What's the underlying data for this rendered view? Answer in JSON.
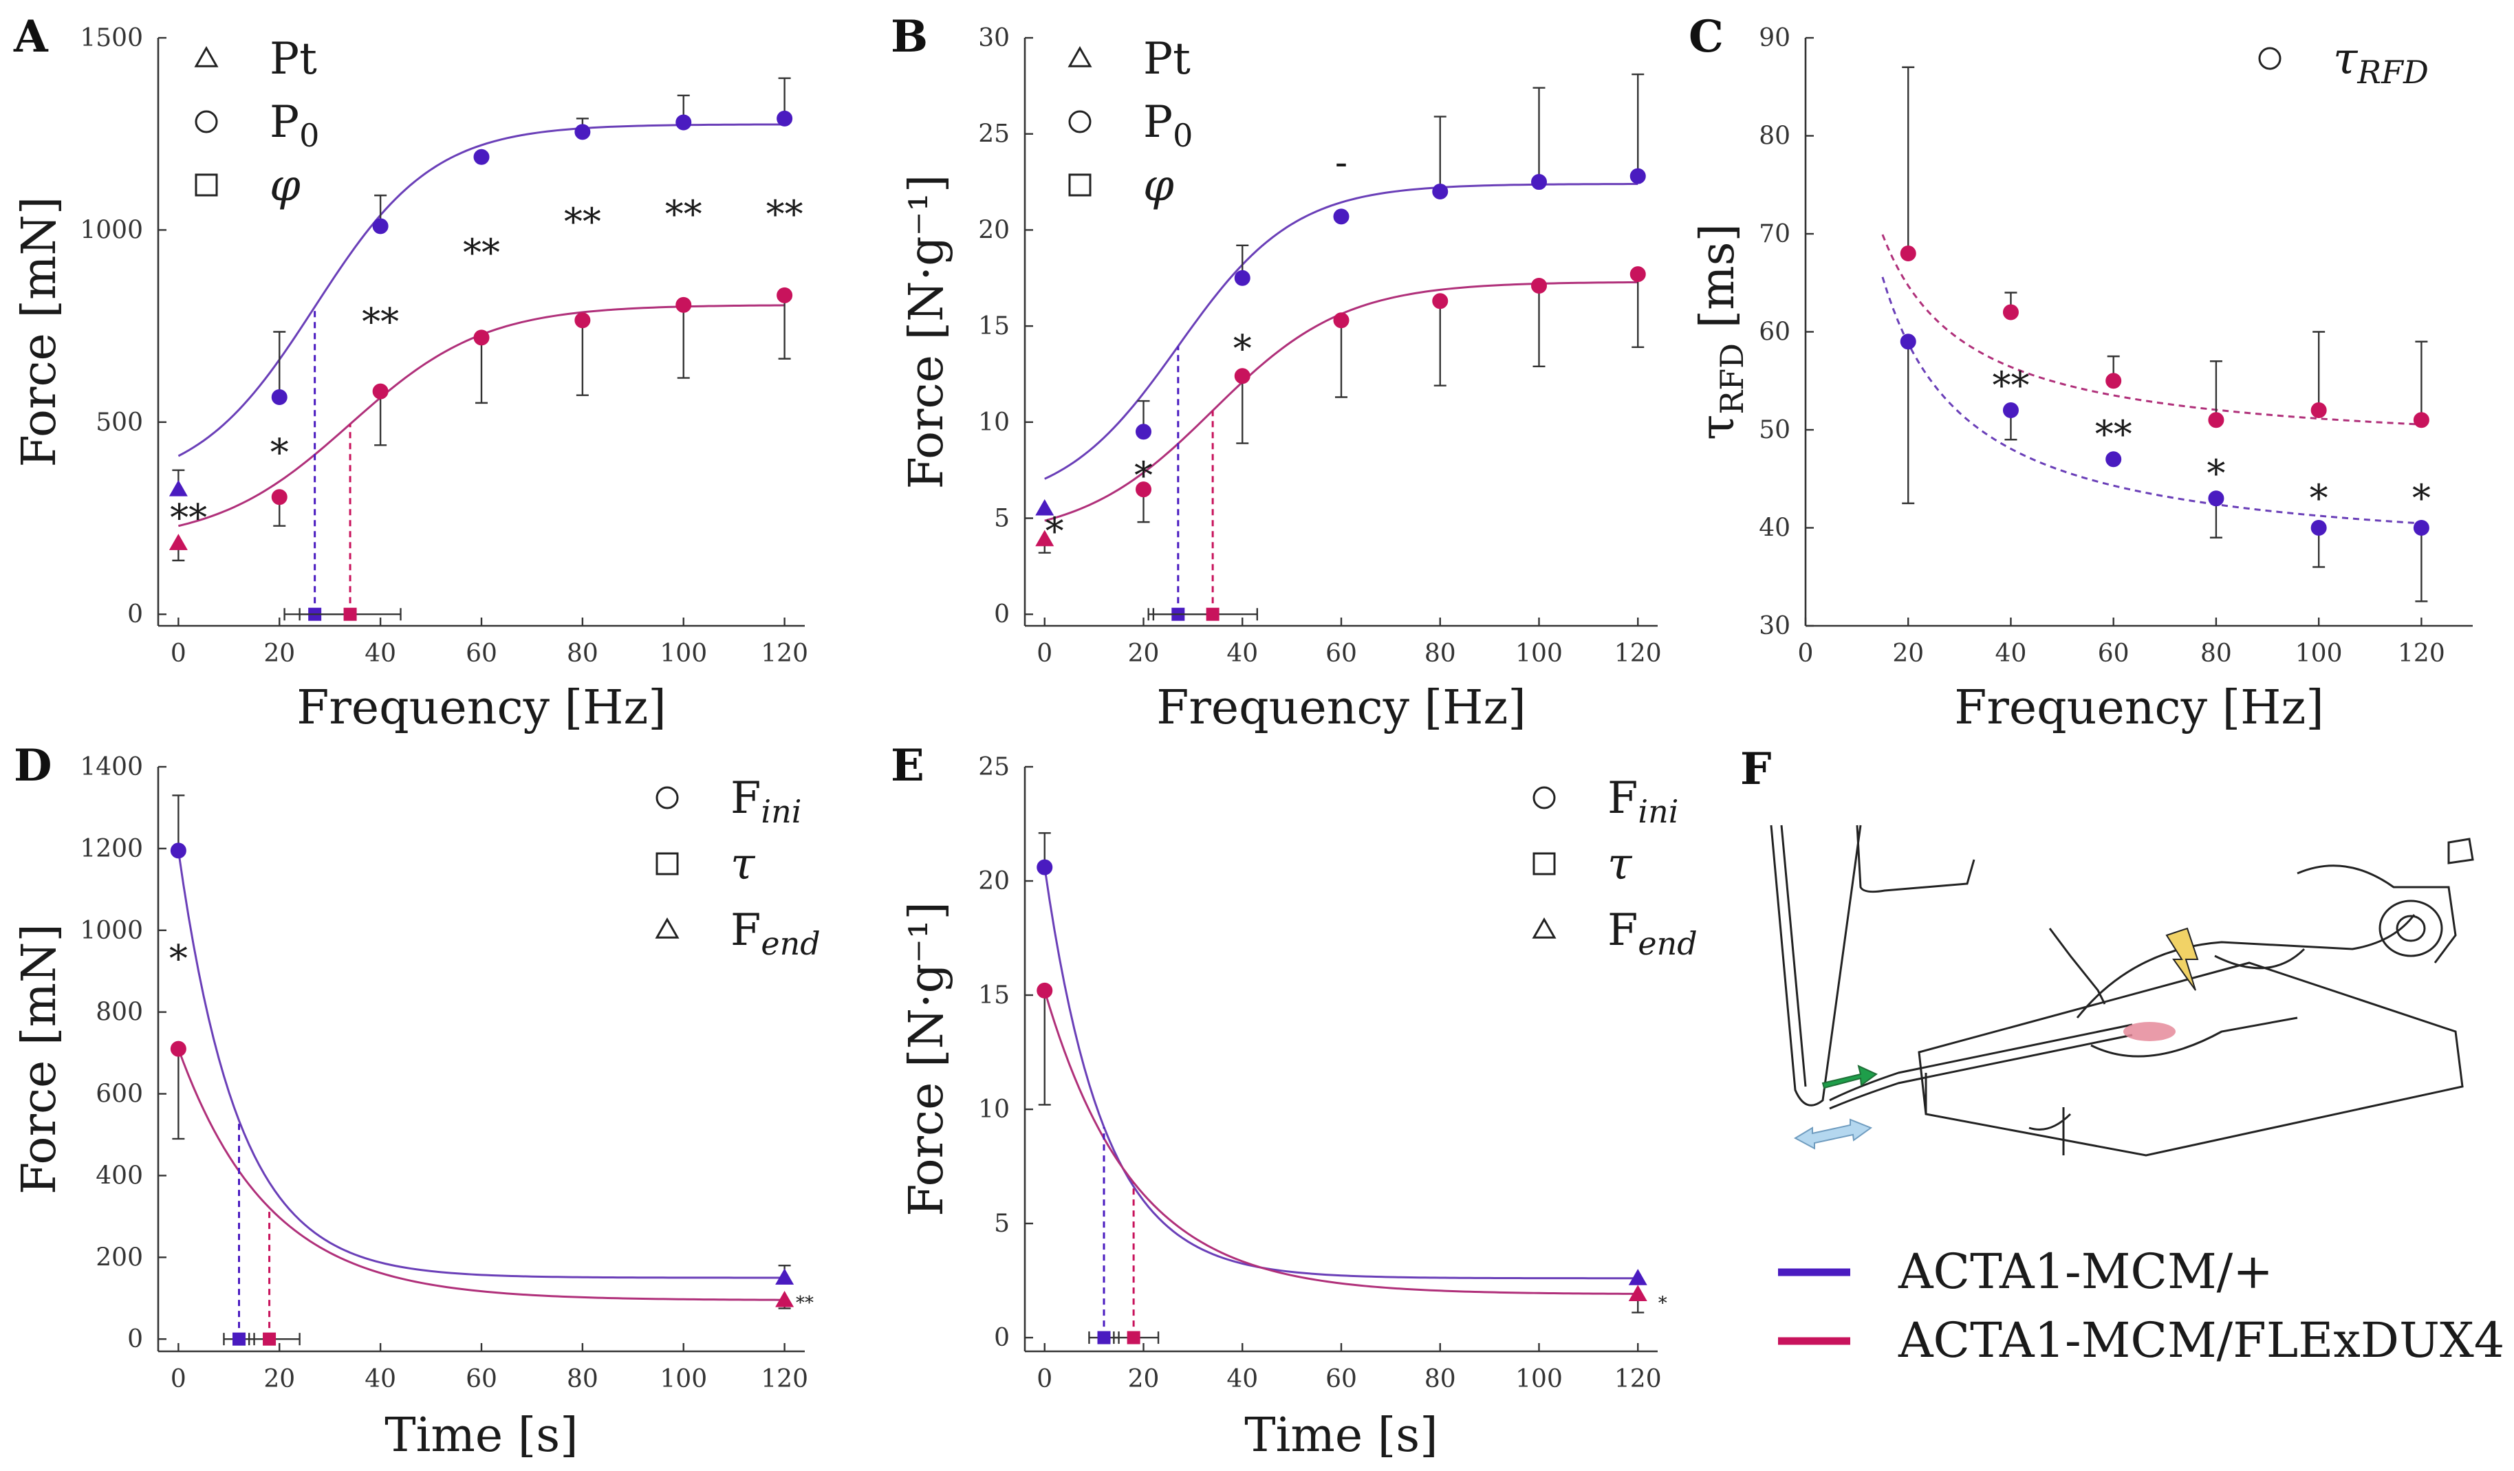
{
  "colors": {
    "wt": "#4a1bc0",
    "dux": "#c8135c",
    "wt_line": "#6a3fb8",
    "dux_line": "#b0307a"
  },
  "genotypes": {
    "wt": "ACTA1-MCM/+",
    "dux": "ACTA1-MCM/FLExDUX4"
  },
  "panels": [
    {
      "id": "A",
      "label": "A",
      "xlabel": "Frequency [Hz]",
      "ylabel": "Force [mN]",
      "xlim": [
        -4,
        124
      ],
      "ylim": [
        -30,
        1500
      ],
      "xticks": [
        "0",
        "20",
        "40",
        "60",
        "80",
        "100",
        "120"
      ],
      "xtick_vals": [
        0,
        20,
        40,
        60,
        80,
        100,
        120
      ],
      "yticks": [
        "0",
        "500",
        "1000",
        "1500"
      ],
      "ytick_vals": [
        0,
        500,
        1000,
        1500
      ],
      "legend": [
        {
          "marker": "triangle",
          "text": "Pt"
        },
        {
          "marker": "circle",
          "text": "P",
          "sub": "0"
        },
        {
          "marker": "square",
          "text": "φ",
          "italic": true
        }
      ],
      "chart_data": {
        "type": "scatter",
        "x": [
          0,
          20,
          40,
          60,
          80,
          100,
          120
        ],
        "series": [
          {
            "name": "ACTA1-MCM/+",
            "values": [
              325,
              565,
              1010,
              1190,
              1255,
              1280,
              1290
            ],
            "err": [
              50,
              170,
              80,
              0,
              35,
              70,
              105
            ],
            "err_dir": "up",
            "fit": {
              "a": 325,
              "b": 950,
              "c": 27,
              "k": 0.085
            }
          },
          {
            "name": "ACTA1-MCM/FLExDUX4",
            "values": [
              185,
              305,
              580,
              720,
              765,
              805,
              830
            ],
            "err": [
              45,
              75,
              140,
              170,
              195,
              190,
              165
            ],
            "err_dir": "down",
            "fit": {
              "a": 185,
              "b": 620,
              "c": 34,
              "k": 0.075
            }
          }
        ],
        "phi": [
          {
            "x": 27,
            "xerr": [
              21,
              33
            ]
          },
          {
            "x": 34,
            "xerr": [
              24,
              44
            ]
          }
        ],
        "sig": [
          {
            "x": 2,
            "y": 250,
            "t": "**"
          },
          {
            "x": 20,
            "y": 420,
            "t": "*"
          },
          {
            "x": 40,
            "y": 760,
            "t": "**"
          },
          {
            "x": 60,
            "y": 940,
            "t": "**"
          },
          {
            "x": 80,
            "y": 1020,
            "t": "**"
          },
          {
            "x": 100,
            "y": 1040,
            "t": "**"
          },
          {
            "x": 120,
            "y": 1040,
            "t": "**"
          }
        ]
      }
    },
    {
      "id": "B",
      "label": "B",
      "xlabel": "Frequency [Hz]",
      "ylabel": "Force [N·g⁻¹]",
      "xlim": [
        -4,
        124
      ],
      "ylim": [
        -0.6,
        30
      ],
      "xticks": [
        "0",
        "20",
        "40",
        "60",
        "80",
        "100",
        "120"
      ],
      "xtick_vals": [
        0,
        20,
        40,
        60,
        80,
        100,
        120
      ],
      "yticks": [
        "0",
        "5",
        "10",
        "15",
        "20",
        "25",
        "30"
      ],
      "ytick_vals": [
        0,
        5,
        10,
        15,
        20,
        25,
        30
      ],
      "legend": [
        {
          "marker": "triangle",
          "text": "Pt"
        },
        {
          "marker": "circle",
          "text": "P",
          "sub": "0"
        },
        {
          "marker": "square",
          "text": "φ",
          "italic": true
        }
      ],
      "chart_data": {
        "type": "scatter",
        "x": [
          0,
          20,
          40,
          60,
          80,
          100,
          120
        ],
        "series": [
          {
            "name": "ACTA1-MCM/+",
            "values": [
              5.5,
              9.5,
              17.5,
              20.7,
              22,
              22.5,
              22.8
            ],
            "err": [
              0,
              1.6,
              1.7,
              0,
              3.9,
              4.9,
              5.3
            ],
            "err_dir": "up",
            "fit": {
              "a": 5.5,
              "b": 16.9,
              "c": 27,
              "k": 0.085
            }
          },
          {
            "name": "ACTA1-MCM/FLExDUX4",
            "values": [
              3.9,
              6.5,
              12.4,
              15.3,
              16.3,
              17.1,
              17.7
            ],
            "err": [
              0.7,
              1.7,
              3.5,
              4,
              4.4,
              4.2,
              3.8
            ],
            "err_dir": "down",
            "fit": {
              "a": 3.9,
              "b": 13.4,
              "c": 34,
              "k": 0.075
            }
          }
        ],
        "phi": [
          {
            "x": 27,
            "xerr": [
              21,
              33
            ]
          },
          {
            "x": 34,
            "xerr": [
              22,
              43
            ]
          }
        ],
        "sig": [
          {
            "x": 2,
            "y": 4.3,
            "t": "*"
          },
          {
            "x": 20,
            "y": 7.2,
            "t": "*"
          },
          {
            "x": 40,
            "y": 13.8,
            "t": "*"
          },
          {
            "x": 60,
            "y": 23.5,
            "t": "-"
          }
        ]
      }
    },
    {
      "id": "C",
      "label": "C",
      "xlabel": "Frequency [Hz]",
      "ylabel": "τ",
      "ylabel_sub": "RFD",
      "ylabel_tail": " [ms]",
      "xlim": [
        0,
        130
      ],
      "ylim": [
        30,
        90
      ],
      "xticks": [
        "0",
        "20",
        "40",
        "60",
        "80",
        "100",
        "120"
      ],
      "xtick_vals": [
        0,
        20,
        40,
        60,
        80,
        100,
        120
      ],
      "yticks": [
        "30",
        "40",
        "50",
        "60",
        "70",
        "80",
        "90"
      ],
      "ytick_vals": [
        30,
        40,
        50,
        60,
        70,
        80,
        90
      ],
      "legend": [
        {
          "marker": "circle",
          "text": "τ",
          "sub": "RFD",
          "italic": true
        }
      ],
      "chart_data": {
        "type": "scatter",
        "x": [
          20,
          40,
          60,
          80,
          100,
          120
        ],
        "series": [
          {
            "name": "ACTA1-MCM/+",
            "values": [
              59,
              52,
              47,
              43,
              40,
              40
            ],
            "err_lo": [
              16.5,
              3,
              0,
              4,
              4,
              7.5
            ],
            "err_hi": [
              0,
              0,
              0,
              0,
              0,
              0
            ],
            "fitC": {
              "a": 36.5,
              "b": 480,
              "x0": 1.5,
              "p": 1
            }
          },
          {
            "name": "ACTA1-MCM/FLExDUX4",
            "values": [
              68,
              62,
              55,
              51,
              52,
              51
            ],
            "err_lo": [
              0,
              0,
              0,
              0,
              0,
              0
            ],
            "err_hi": [
              19,
              2,
              2.5,
              6,
              8,
              8
            ],
            "fitC": {
              "a": 47.5,
              "b": 370,
              "x0": 1.5,
              "p": 1
            }
          }
        ],
        "sig": [
          {
            "x": 40,
            "y": 54.5,
            "t": "**"
          },
          {
            "x": 60,
            "y": 49.5,
            "t": "**"
          },
          {
            "x": 80,
            "y": 45.5,
            "t": "*"
          },
          {
            "x": 100,
            "y": 43,
            "t": "*"
          },
          {
            "x": 120,
            "y": 43,
            "t": "*"
          }
        ]
      }
    },
    {
      "id": "D",
      "label": "D",
      "xlabel": "Time [s]",
      "ylabel": "Force [mN]",
      "xlim": [
        -4,
        124
      ],
      "ylim": [
        -30,
        1400
      ],
      "xticks": [
        "0",
        "20",
        "40",
        "60",
        "80",
        "100",
        "120"
      ],
      "xtick_vals": [
        0,
        20,
        40,
        60,
        80,
        100,
        120
      ],
      "yticks": [
        "0",
        "200",
        "400",
        "600",
        "800",
        "1000",
        "1200",
        "1400"
      ],
      "ytick_vals": [
        0,
        200,
        400,
        600,
        800,
        1000,
        1200,
        1400
      ],
      "legend": [
        {
          "marker": "circle",
          "text": "F",
          "sub": "ini",
          "italic_sub": true
        },
        {
          "marker": "square",
          "text": "τ",
          "italic": true
        },
        {
          "marker": "triangle",
          "text": "F",
          "sub": "end",
          "italic_sub": true
        }
      ],
      "chart_data": {
        "type": "scatter",
        "series": [
          {
            "name": "ACTA1-MCM/+",
            "x": [
              0,
              120
            ],
            "values": [
              1195,
              150
            ],
            "err": [
              135,
              30
            ],
            "err_dir": "up",
            "fitD": {
              "fend": 150,
              "fini": 1195,
              "tau": 12
            }
          },
          {
            "name": "ACTA1-MCM/FLExDUX4",
            "x": [
              0,
              120
            ],
            "values": [
              710,
              95
            ],
            "err": [
              220,
              20
            ],
            "err_dir": "down",
            "fitD": {
              "fend": 95,
              "fini": 710,
              "tau": 18
            }
          }
        ],
        "tau": [
          {
            "x": 12,
            "xerr": [
              9,
              15
            ]
          },
          {
            "x": 18,
            "xerr": [
              14,
              24
            ]
          }
        ],
        "sig": [
          {
            "x": 0,
            "y": 930,
            "t": "*"
          },
          {
            "x": 124,
            "y": 105,
            "t": "**",
            "small": true
          }
        ]
      }
    },
    {
      "id": "E",
      "label": "E",
      "xlabel": "Time [s]",
      "ylabel": "Force [N·g⁻¹]",
      "xlim": [
        -4,
        124
      ],
      "ylim": [
        -0.6,
        25
      ],
      "xticks": [
        "0",
        "20",
        "40",
        "60",
        "80",
        "100",
        "120"
      ],
      "xtick_vals": [
        0,
        20,
        40,
        60,
        80,
        100,
        120
      ],
      "yticks": [
        "0",
        "5",
        "10",
        "15",
        "20",
        "25"
      ],
      "ytick_vals": [
        0,
        5,
        10,
        15,
        20,
        25
      ],
      "legend": [
        {
          "marker": "circle",
          "text": "F",
          "sub": "ini",
          "italic_sub": true
        },
        {
          "marker": "square",
          "text": "τ",
          "italic": true
        },
        {
          "marker": "triangle",
          "text": "F",
          "sub": "end",
          "italic_sub": true
        }
      ],
      "chart_data": {
        "type": "scatter",
        "series": [
          {
            "name": "ACTA1-MCM/+",
            "x": [
              0,
              120
            ],
            "values": [
              20.6,
              2.6
            ],
            "err": [
              1.5,
              0
            ],
            "err_dir": "up",
            "fitD": {
              "fend": 2.6,
              "fini": 20.6,
              "tau": 12
            }
          },
          {
            "name": "ACTA1-MCM/FLExDUX4",
            "x": [
              0,
              120
            ],
            "values": [
              15.2,
              1.9
            ],
            "err": [
              5,
              0.8
            ],
            "err_dir": "down",
            "fitD": {
              "fend": 1.9,
              "fini": 15.2,
              "tau": 18
            }
          }
        ],
        "tau": [
          {
            "x": 12,
            "xerr": [
              9,
              15
            ]
          },
          {
            "x": 18,
            "xerr": [
              14,
              23
            ]
          }
        ],
        "sig": [
          {
            "x": 125,
            "y": 1.8,
            "t": "*",
            "small": true
          }
        ]
      }
    }
  ],
  "panel_f": {
    "label": "F",
    "icon": "muscle-setup-illustration"
  }
}
